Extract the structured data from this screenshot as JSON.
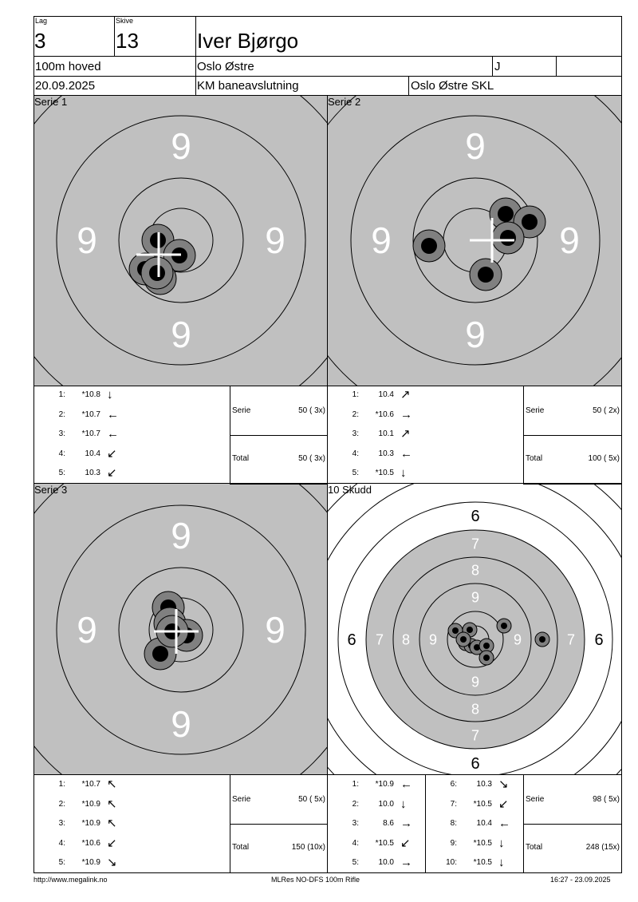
{
  "header": {
    "lag_label": "Lag",
    "lag": "3",
    "skive_label": "Skive",
    "skive": "13",
    "name": "Iver Bjørgo",
    "class": "100m hoved",
    "club": "Oslo Østre",
    "category": "J",
    "date": "20.09.2025",
    "event": "KM baneavslutning",
    "organizer": "Oslo Østre SKL"
  },
  "panels": [
    {
      "title": "Serie 1",
      "ring_label": "9",
      "shots": [
        {
          "n": "1:",
          "v": "*10.8",
          "a": "↓"
        },
        {
          "n": "2:",
          "v": "*10.7",
          "a": "←"
        },
        {
          "n": "3:",
          "v": "*10.7",
          "a": "←"
        },
        {
          "n": "4:",
          "v": "10.4",
          "a": "↙"
        },
        {
          "n": "5:",
          "v": "10.3",
          "a": "↙"
        }
      ],
      "serie_label": "Serie",
      "serie": "50 ( 3x)",
      "total_label": "Total",
      "total": "50 ( 3x)"
    },
    {
      "title": "Serie 2",
      "ring_label": "9",
      "shots": [
        {
          "n": "1:",
          "v": "10.4",
          "a": "↗"
        },
        {
          "n": "2:",
          "v": "*10.6",
          "a": "→"
        },
        {
          "n": "3:",
          "v": "10.1",
          "a": "↗"
        },
        {
          "n": "4:",
          "v": "10.3",
          "a": "←"
        },
        {
          "n": "5:",
          "v": "*10.5",
          "a": "↓"
        }
      ],
      "serie_label": "Serie",
      "serie": "50 ( 2x)",
      "total_label": "Total",
      "total": "100 ( 5x)"
    },
    {
      "title": "Serie 3",
      "ring_label": "9",
      "shots": [
        {
          "n": "1:",
          "v": "*10.7",
          "a": "↖"
        },
        {
          "n": "2:",
          "v": "*10.9",
          "a": "↖"
        },
        {
          "n": "3:",
          "v": "*10.9",
          "a": "↖"
        },
        {
          "n": "4:",
          "v": "*10.6",
          "a": "↙"
        },
        {
          "n": "5:",
          "v": "*10.9",
          "a": "↘"
        }
      ],
      "serie_label": "Serie",
      "serie": "50 ( 5x)",
      "total_label": "Total",
      "total": "150 (10x)"
    },
    {
      "title": "10 Skudd",
      "ring_labels": [
        "6",
        "7",
        "8",
        "9"
      ],
      "shots": [
        {
          "n": "1:",
          "v": "*10.9",
          "a": "←"
        },
        {
          "n": "2:",
          "v": "10.0",
          "a": "↓"
        },
        {
          "n": "3:",
          "v": "8.6",
          "a": "→"
        },
        {
          "n": "4:",
          "v": "*10.5",
          "a": "↙"
        },
        {
          "n": "5:",
          "v": "10.0",
          "a": "→"
        },
        {
          "n": "6:",
          "v": "10.3",
          "a": "↘"
        },
        {
          "n": "7:",
          "v": "*10.5",
          "a": "↙"
        },
        {
          "n": "8:",
          "v": "10.4",
          "a": "←"
        },
        {
          "n": "9:",
          "v": "*10.5",
          "a": "↓"
        },
        {
          "n": "10:",
          "v": "*10.5",
          "a": "↓"
        }
      ],
      "serie_label": "Serie",
      "serie": "98 ( 5x)",
      "total_label": "Total",
      "total": "248 (15x)"
    }
  ],
  "footer": {
    "url": "http://www.megalink.no",
    "program": "MLRes NO-DFS 100m Rifle",
    "timestamp": "16:27 - 23.09.2025"
  },
  "colors": {
    "target_gray": "#c0c0c0",
    "shot_ring": "#808080",
    "shot_core": "#000000"
  }
}
